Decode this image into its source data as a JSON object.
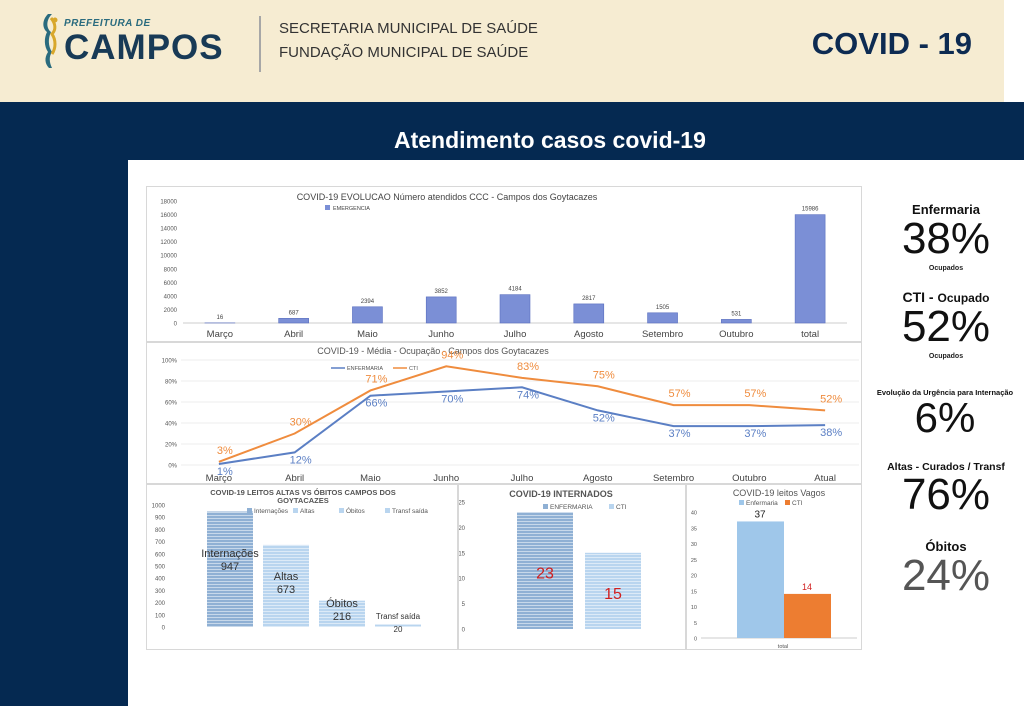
{
  "header": {
    "logo_top": "PREFEITURA DE",
    "logo_name": "CAMPOS",
    "sec_line1": "SECRETARIA MUNICIPAL DE SAÚDE",
    "sec_line2": "FUNDAÇÃO MUNICIPAL DE  SAÚDE",
    "title": "COVID - 19"
  },
  "section_title": "Atendimento casos covid-19",
  "colors": {
    "navy": "#052951",
    "blue_bar": "#7b8fd6",
    "line_enfermaria": "#5b7fc4",
    "line_cti": "#ef8c3e",
    "light_bar": "#9fc7ea",
    "cti_bar": "#ed7d31",
    "red_value": "#d11f1f"
  },
  "stats": [
    {
      "label": "Enfermaria",
      "value": "38%",
      "sub": "Ocupados"
    },
    {
      "label": "CTI -",
      "label_suffix": "Ocupado",
      "value": "52%",
      "sub": "Ocupados"
    },
    {
      "label": "Evolução da Urgência para Internação",
      "value": "6%"
    },
    {
      "label": "Altas - Curados / Transf",
      "value": "76%"
    },
    {
      "label": "Óbitos",
      "value": "24%"
    }
  ],
  "chart_data": [
    {
      "type": "bar",
      "title": "COVID-19 EVOLUCAO Número atendidos CCC - Campos dos Goytacazes",
      "legend": "EMERGENCIA",
      "categories": [
        "Março",
        "Abril",
        "Maio",
        "Junho",
        "Julho",
        "Agosto",
        "Setembro",
        "Outubro",
        "total"
      ],
      "values": [
        16,
        687,
        2394,
        3852,
        4184,
        2817,
        1505,
        531,
        15986
      ],
      "ylim": [
        0,
        18000
      ],
      "yticks": [
        "0",
        "2000",
        "4000",
        "6000",
        "8000",
        "10000",
        "12000",
        "14000",
        "16000",
        "18000"
      ]
    },
    {
      "type": "line",
      "title": "COVID-19 - Média - Ocupação -  Campos dos Goytacazes",
      "categories": [
        "Março",
        "Abril",
        "Maio",
        "Junho",
        "Julho",
        "Agosto",
        "Setembro",
        "Outubro",
        "Atual"
      ],
      "ylim": [
        0,
        100
      ],
      "yticks": [
        "0%",
        "20%",
        "40%",
        "60%",
        "80%",
        "100%"
      ],
      "series": [
        {
          "name": "ENFERMARIA",
          "values": [
            1,
            12,
            66,
            70,
            74,
            52,
            37,
            37,
            38
          ],
          "labels": [
            "1%",
            "12%",
            "66%",
            "70%",
            "74%",
            "52%",
            "37%",
            "37%",
            "38%"
          ]
        },
        {
          "name": "CTI",
          "values": [
            3,
            30,
            71,
            94,
            83,
            75,
            57,
            57,
            52
          ],
          "labels": [
            "3%",
            "30%",
            "71%",
            "94%",
            "83%",
            "75%",
            "57%",
            "57%",
            "52%"
          ]
        }
      ]
    },
    {
      "type": "bar",
      "title": "COVID-19 LEITOS ALTAS VS ÓBITOS CAMPOS DOS GOYTACAZES",
      "title_line1": "COVID-19 LEITOS ALTAS VS ÓBITOS CAMPOS DOS",
      "title_line2": "GOYTACAZES",
      "categories": [
        "Internações",
        "Altas",
        "Óbitos",
        "Transf saída"
      ],
      "values": [
        947,
        673,
        216,
        20
      ],
      "ylim": [
        0,
        1000
      ],
      "yticks": [
        "0",
        "100",
        "200",
        "300",
        "400",
        "500",
        "600",
        "700",
        "800",
        "900",
        "1000"
      ]
    },
    {
      "type": "bar",
      "title": "COVID-19 INTERNADOS",
      "categories": [
        "ENFERMARIA",
        "CTI"
      ],
      "values": [
        23,
        15
      ],
      "ylim": [
        0,
        25
      ],
      "yticks": [
        "0",
        "5",
        "10",
        "15",
        "20",
        "25"
      ]
    },
    {
      "type": "bar",
      "title": "COVID-19 leitos Vagos",
      "categories": [
        "Enfermaria",
        "CTI"
      ],
      "values": [
        37,
        14
      ],
      "xlabel": "total",
      "ylim": [
        0,
        40
      ],
      "yticks": [
        "0",
        "5",
        "10",
        "15",
        "20",
        "25",
        "30",
        "35",
        "40"
      ]
    }
  ]
}
